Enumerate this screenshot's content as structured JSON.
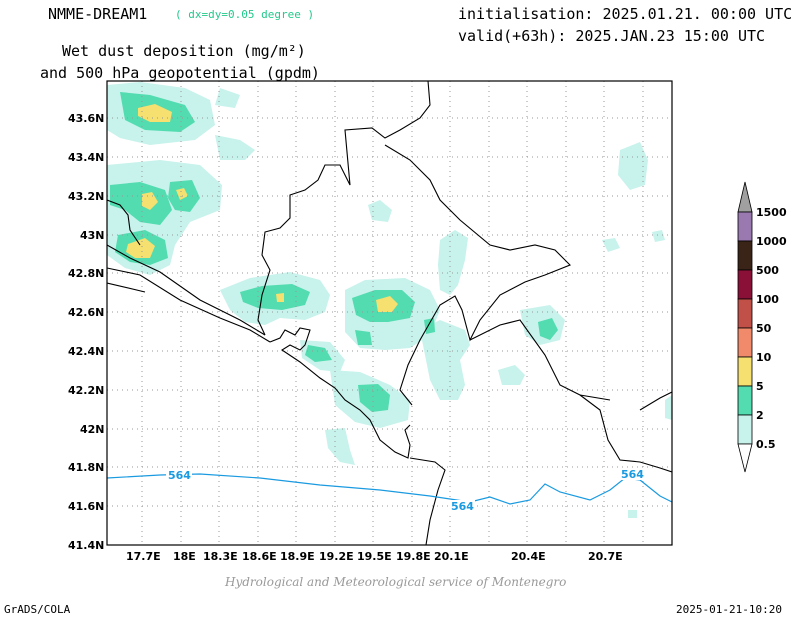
{
  "header": {
    "model": "NMME-DREAM1",
    "resolution": "( dx=dy=0.05 degree )",
    "init": "initialisation: 2025.01.21. 00:00 UTC",
    "valid": "valid(+63h): 2025.JAN.23 15:00 UTC",
    "field_line1": "Wet dust deposition (mg/m²)",
    "field_line2": "and 500 hPa geopotential (gpdm)"
  },
  "footer": {
    "credit": "Hydrological and Meteorological service of Montenegro",
    "software": "GrADS/COLA",
    "timestamp": "2025-01-21-10:20"
  },
  "axes": {
    "lat_labels": [
      "43.6N",
      "43.4N",
      "43.2N",
      "43N",
      "42.8N",
      "42.6N",
      "42.4N",
      "42.2N",
      "42N",
      "41.8N",
      "41.6N",
      "41.4N"
    ],
    "lon_labels": [
      "17.7E",
      "18E",
      "18.3E",
      "18.6E",
      "18.9E",
      "19.2E",
      "19.5E",
      "19.8E",
      "20.1E",
      "20.4E",
      "20.7E"
    ]
  },
  "contours": {
    "label": "564",
    "color": "#1a9ae0"
  },
  "colorbar": {
    "labels": [
      "0.5",
      "2",
      "5",
      "10",
      "50",
      "100",
      "500",
      "1000",
      "1500"
    ],
    "colors": [
      "#c8f2ec",
      "#52dcb0",
      "#f5e070",
      "#f08a6a",
      "#c05048",
      "#8a1038",
      "#3a2418",
      "#9a78b0",
      "#a0a0a0"
    ]
  }
}
